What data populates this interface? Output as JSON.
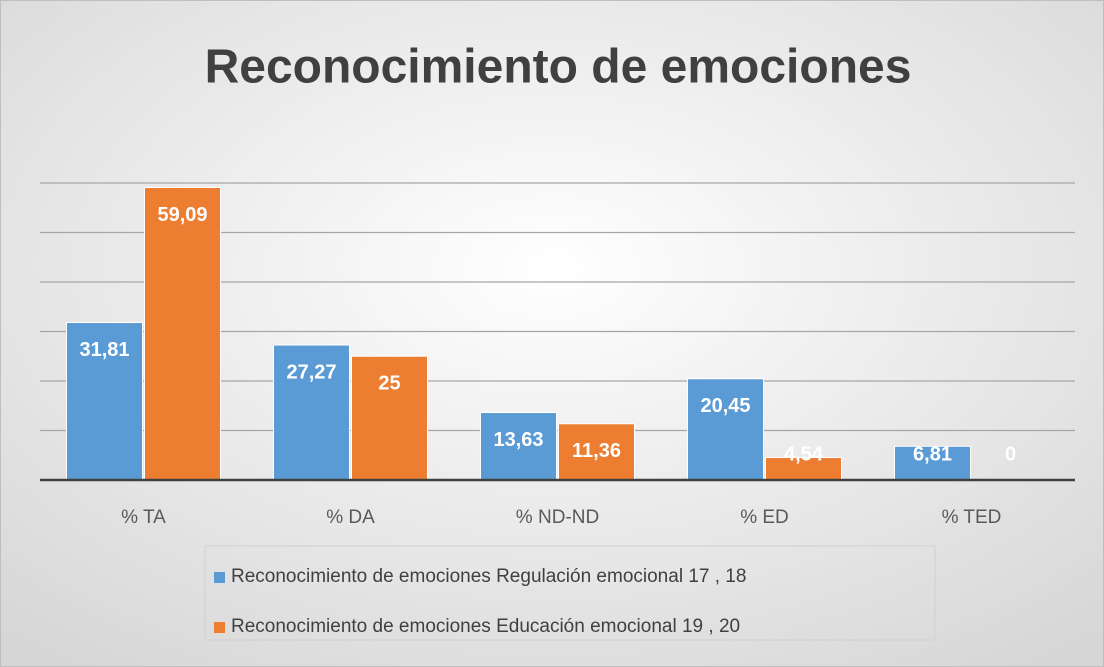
{
  "chart_data": {
    "type": "bar",
    "title": "Reconocimiento de emociones",
    "categories": [
      "% TA",
      "% DA",
      "% ND-ND",
      "% ED",
      "% TED"
    ],
    "series": [
      {
        "name": "Reconocimiento de emociones Regulación emocional 17 , 18",
        "color": "#5b9bd5",
        "values": [
          31.81,
          27.27,
          13.63,
          20.45,
          6.81
        ],
        "value_labels": [
          "31,81",
          "27,27",
          "13,63",
          "20,45",
          "6,81"
        ]
      },
      {
        "name": "Reconocimiento de emociones Educación emocional 19 , 20",
        "color": "#ed7d31",
        "values": [
          59.09,
          25,
          11.36,
          4.54,
          0
        ],
        "value_labels": [
          "59,09",
          "25",
          "11,36",
          "4,54",
          "0"
        ]
      }
    ],
    "ylim": [
      0,
      60
    ],
    "yticks": [
      0,
      10,
      20,
      30,
      40,
      50,
      60
    ],
    "grid": true,
    "legend": "bottom"
  }
}
